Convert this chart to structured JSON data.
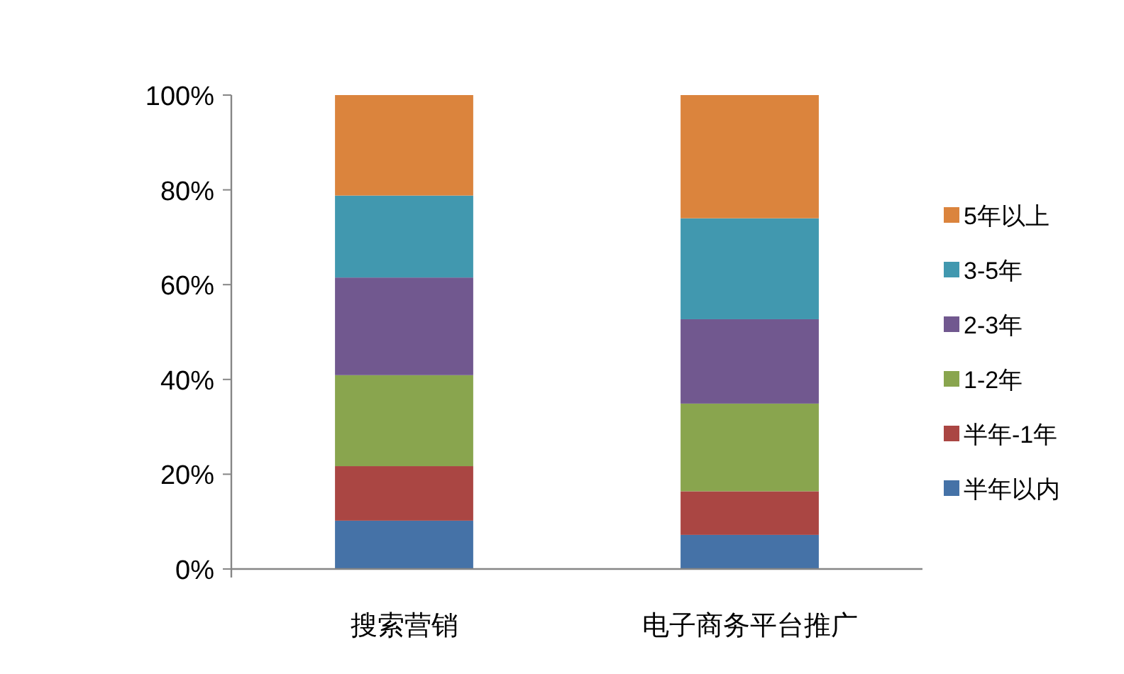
{
  "chart_data": {
    "type": "bar",
    "stacked": true,
    "categories": [
      "搜索营销",
      "电子商务平台推广"
    ],
    "series": [
      {
        "name": "半年以内",
        "color": "#4572a7",
        "values": [
          10.2,
          7.2
        ]
      },
      {
        "name": "半年-1年",
        "color": "#aa4643",
        "values": [
          11.5,
          9.2
        ]
      },
      {
        "name": "1-2年",
        "color": "#89a54e",
        "values": [
          19.2,
          18.5
        ]
      },
      {
        "name": "2-3年",
        "color": "#71588f",
        "values": [
          20.6,
          17.8
        ]
      },
      {
        "name": "3-5年",
        "color": "#4198af",
        "values": [
          17.3,
          21.3
        ]
      },
      {
        "name": "5年以上",
        "color": "#db843d",
        "values": [
          21.2,
          26.0
        ]
      }
    ],
    "ylim": [
      0,
      100
    ],
    "yticks": [
      {
        "value": 0,
        "label": "0%"
      },
      {
        "value": 20,
        "label": "20%"
      },
      {
        "value": 40,
        "label": "40%"
      },
      {
        "value": 60,
        "label": "60%"
      },
      {
        "value": 80,
        "label": "80%"
      },
      {
        "value": 100,
        "label": "100%"
      }
    ],
    "grid": false,
    "legend": "right"
  }
}
